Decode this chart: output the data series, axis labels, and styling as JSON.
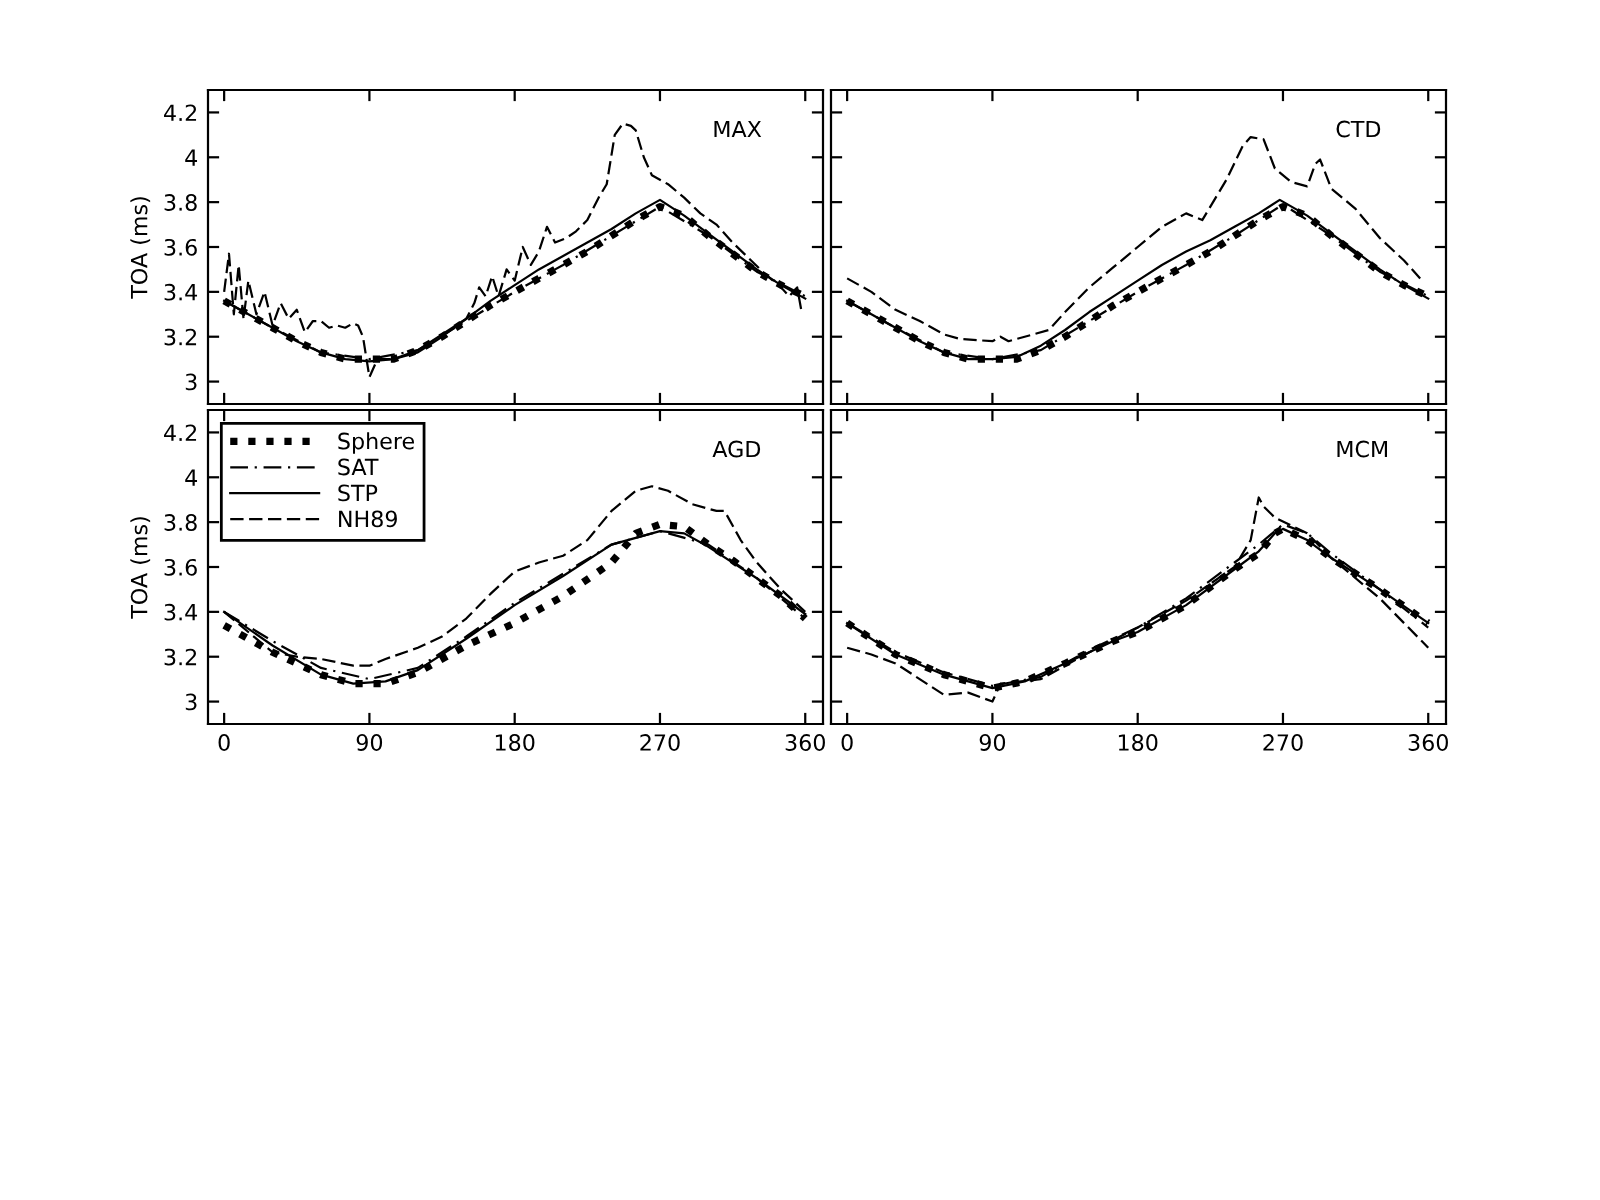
{
  "chart_data": [
    {
      "type": "line",
      "title": "MAX",
      "ylabel": "TOA (ms)",
      "xlim": [
        -10,
        371
      ],
      "ylim": [
        2.9,
        4.3
      ],
      "xticks": [
        0,
        90,
        180,
        270,
        360
      ],
      "yticks": [
        3,
        3.2,
        3.4,
        3.6,
        3.8,
        4,
        4.2
      ],
      "tick_labels": "y",
      "grid": false,
      "legend": false,
      "series": [
        {
          "color": "#000000",
          "line_style": "dotted",
          "x": [
            0,
            15,
            30,
            45,
            60,
            75,
            90,
            105,
            120,
            135,
            150,
            165,
            180,
            195,
            210,
            225,
            240,
            255,
            270,
            285,
            300,
            315,
            330,
            345,
            360
          ],
          "values": [
            3.36,
            3.3,
            3.24,
            3.18,
            3.13,
            3.1,
            3.1,
            3.1,
            3.14,
            3.2,
            3.27,
            3.34,
            3.4,
            3.46,
            3.52,
            3.58,
            3.65,
            3.72,
            3.78,
            3.74,
            3.65,
            3.57,
            3.49,
            3.43,
            3.38
          ]
        },
        {
          "color": "#000000",
          "line_style": "dashdot",
          "x": [
            0,
            30,
            60,
            90,
            120,
            150,
            180,
            210,
            240,
            270,
            300,
            330,
            360
          ],
          "values": [
            3.36,
            3.24,
            3.13,
            3.1,
            3.14,
            3.27,
            3.4,
            3.52,
            3.65,
            3.78,
            3.65,
            3.49,
            3.38
          ]
        },
        {
          "color": "#000000",
          "line_style": "solid",
          "x": [
            0,
            15,
            30,
            45,
            60,
            75,
            90,
            105,
            120,
            135,
            150,
            165,
            180,
            195,
            210,
            225,
            240,
            255,
            270,
            285,
            300,
            315,
            330,
            345,
            360
          ],
          "values": [
            3.36,
            3.3,
            3.24,
            3.18,
            3.13,
            3.1,
            3.09,
            3.1,
            3.14,
            3.21,
            3.28,
            3.36,
            3.43,
            3.5,
            3.56,
            3.62,
            3.68,
            3.75,
            3.81,
            3.74,
            3.66,
            3.58,
            3.5,
            3.43,
            3.37
          ]
        },
        {
          "color": "#000000",
          "line_style": "dashed",
          "x": [
            0,
            3,
            6,
            9,
            12,
            15,
            20,
            25,
            30,
            35,
            40,
            45,
            50,
            55,
            60,
            65,
            70,
            75,
            80,
            83,
            86,
            90,
            95,
            105,
            120,
            135,
            150,
            155,
            158,
            162,
            166,
            170,
            175,
            180,
            185,
            190,
            195,
            200,
            205,
            212,
            218,
            225,
            232,
            237,
            242,
            247,
            252,
            255,
            260,
            265,
            275,
            285,
            295,
            305,
            315,
            325,
            335,
            345,
            350,
            355,
            358
          ],
          "values": [
            3.4,
            3.57,
            3.3,
            3.52,
            3.28,
            3.45,
            3.3,
            3.4,
            3.25,
            3.35,
            3.28,
            3.32,
            3.22,
            3.27,
            3.27,
            3.24,
            3.25,
            3.24,
            3.26,
            3.25,
            3.2,
            3.02,
            3.1,
            3.1,
            3.13,
            3.2,
            3.28,
            3.35,
            3.42,
            3.38,
            3.47,
            3.38,
            3.5,
            3.45,
            3.6,
            3.52,
            3.58,
            3.69,
            3.62,
            3.64,
            3.67,
            3.72,
            3.82,
            3.88,
            4.1,
            4.15,
            4.14,
            4.12,
            4.0,
            3.92,
            3.88,
            3.82,
            3.75,
            3.7,
            3.62,
            3.55,
            3.48,
            3.42,
            3.38,
            3.42,
            3.3
          ]
        }
      ]
    },
    {
      "type": "line",
      "title": "CTD",
      "xlim": [
        -10,
        371
      ],
      "ylim": [
        2.9,
        4.3
      ],
      "xticks": [
        0,
        90,
        180,
        270,
        360
      ],
      "yticks": [
        3,
        3.2,
        3.4,
        3.6,
        3.8,
        4,
        4.2
      ],
      "tick_labels": false,
      "grid": false,
      "legend": false,
      "series": [
        {
          "color": "#000000",
          "line_style": "dotted",
          "x": [
            0,
            15,
            30,
            45,
            60,
            75,
            90,
            105,
            120,
            135,
            150,
            165,
            180,
            195,
            210,
            225,
            240,
            255,
            270,
            285,
            300,
            315,
            330,
            345,
            360
          ],
          "values": [
            3.36,
            3.3,
            3.24,
            3.18,
            3.13,
            3.1,
            3.1,
            3.1,
            3.14,
            3.2,
            3.27,
            3.34,
            3.4,
            3.46,
            3.52,
            3.58,
            3.65,
            3.72,
            3.78,
            3.74,
            3.65,
            3.57,
            3.49,
            3.43,
            3.38
          ]
        },
        {
          "color": "#000000",
          "line_style": "dashdot",
          "x": [
            0,
            30,
            60,
            90,
            120,
            150,
            180,
            210,
            240,
            270,
            300,
            330,
            360
          ],
          "values": [
            3.36,
            3.24,
            3.13,
            3.1,
            3.14,
            3.27,
            3.4,
            3.52,
            3.65,
            3.79,
            3.65,
            3.49,
            3.38
          ]
        },
        {
          "color": "#000000",
          "line_style": "solid",
          "x": [
            0,
            15,
            30,
            45,
            60,
            75,
            90,
            105,
            120,
            135,
            150,
            165,
            180,
            195,
            210,
            225,
            240,
            255,
            268,
            285,
            300,
            315,
            330,
            345,
            360
          ],
          "values": [
            3.36,
            3.3,
            3.24,
            3.18,
            3.13,
            3.1,
            3.1,
            3.11,
            3.16,
            3.23,
            3.31,
            3.38,
            3.45,
            3.52,
            3.58,
            3.63,
            3.69,
            3.75,
            3.81,
            3.74,
            3.66,
            3.58,
            3.5,
            3.43,
            3.37
          ]
        },
        {
          "color": "#000000",
          "line_style": "dashed",
          "x": [
            0,
            15,
            30,
            45,
            60,
            70,
            90,
            95,
            100,
            110,
            125,
            135,
            150,
            165,
            180,
            195,
            210,
            220,
            235,
            245,
            250,
            258,
            265,
            275,
            285,
            290,
            293,
            300,
            315,
            330,
            345,
            355
          ],
          "values": [
            3.46,
            3.4,
            3.32,
            3.27,
            3.21,
            3.19,
            3.18,
            3.2,
            3.18,
            3.2,
            3.23,
            3.31,
            3.42,
            3.51,
            3.6,
            3.69,
            3.75,
            3.72,
            3.9,
            4.05,
            4.09,
            4.08,
            3.95,
            3.89,
            3.87,
            3.97,
            3.99,
            3.86,
            3.77,
            3.64,
            3.54,
            3.46
          ]
        }
      ]
    },
    {
      "type": "line",
      "title": "AGD",
      "ylabel": "TOA (ms)",
      "xlim": [
        -10,
        371
      ],
      "ylim": [
        2.9,
        4.3
      ],
      "xticks": [
        0,
        90,
        180,
        270,
        360
      ],
      "yticks": [
        3,
        3.2,
        3.4,
        3.6,
        3.8,
        4,
        4.2
      ],
      "grid": false,
      "legend": "top left",
      "series": [
        {
          "name": "Sphere",
          "color": "#000000",
          "line_style": "dotted",
          "x": [
            0,
            30,
            60,
            80,
            100,
            120,
            150,
            180,
            210,
            240,
            255,
            270,
            285,
            300,
            315,
            330,
            345,
            360
          ],
          "values": [
            3.34,
            3.22,
            3.12,
            3.08,
            3.08,
            3.13,
            3.25,
            3.35,
            3.47,
            3.62,
            3.75,
            3.79,
            3.78,
            3.7,
            3.63,
            3.55,
            3.47,
            3.37
          ]
        },
        {
          "name": "SAT",
          "color": "#000000",
          "line_style": "dashdot",
          "x": [
            0,
            30,
            60,
            90,
            120,
            150,
            180,
            210,
            240,
            270,
            300,
            330,
            360
          ],
          "values": [
            3.4,
            3.27,
            3.15,
            3.1,
            3.15,
            3.29,
            3.44,
            3.57,
            3.7,
            3.76,
            3.7,
            3.55,
            3.37
          ]
        },
        {
          "name": "STP",
          "color": "#000000",
          "line_style": "solid",
          "x": [
            0,
            30,
            60,
            80,
            100,
            120,
            150,
            180,
            210,
            240,
            270,
            285,
            300,
            330,
            360
          ],
          "values": [
            3.4,
            3.25,
            3.12,
            3.08,
            3.09,
            3.14,
            3.28,
            3.43,
            3.56,
            3.7,
            3.76,
            3.75,
            3.69,
            3.55,
            3.39
          ]
        },
        {
          "name": "NH89",
          "color": "#000000",
          "line_style": "dashed",
          "x": [
            0,
            30,
            45,
            60,
            80,
            90,
            100,
            120,
            135,
            150,
            165,
            180,
            195,
            210,
            225,
            240,
            255,
            265,
            275,
            290,
            305,
            310,
            320,
            330,
            345,
            360
          ],
          "values": [
            3.4,
            3.22,
            3.2,
            3.19,
            3.16,
            3.16,
            3.19,
            3.24,
            3.29,
            3.37,
            3.48,
            3.58,
            3.62,
            3.65,
            3.72,
            3.85,
            3.94,
            3.96,
            3.94,
            3.88,
            3.85,
            3.85,
            3.72,
            3.62,
            3.5,
            3.4
          ]
        }
      ]
    },
    {
      "type": "line",
      "title": "MCM",
      "xlim": [
        -10,
        371
      ],
      "ylim": [
        2.9,
        4.3
      ],
      "xticks": [
        0,
        90,
        180,
        270,
        360
      ],
      "yticks": [
        3,
        3.2,
        3.4,
        3.6,
        3.8,
        4,
        4.2
      ],
      "tick_labels": "x",
      "grid": false,
      "legend": false,
      "series": [
        {
          "color": "#000000",
          "line_style": "dotted",
          "x": [
            0,
            30,
            60,
            90,
            110,
            135,
            165,
            180,
            210,
            240,
            255,
            265,
            270,
            285,
            300,
            330,
            360
          ],
          "values": [
            3.35,
            3.21,
            3.12,
            3.06,
            3.09,
            3.17,
            3.27,
            3.31,
            3.43,
            3.59,
            3.66,
            3.75,
            3.77,
            3.72,
            3.64,
            3.5,
            3.35
          ]
        },
        {
          "color": "#000000",
          "line_style": "dashdot",
          "x": [
            0,
            30,
            60,
            90,
            120,
            150,
            180,
            210,
            240,
            255,
            270,
            285,
            300,
            330,
            360
          ],
          "values": [
            3.35,
            3.22,
            3.13,
            3.07,
            3.11,
            3.23,
            3.33,
            3.46,
            3.62,
            3.7,
            3.79,
            3.75,
            3.66,
            3.5,
            3.33
          ]
        },
        {
          "color": "#000000",
          "line_style": "solid",
          "x": [
            0,
            30,
            60,
            90,
            110,
            135,
            165,
            180,
            210,
            240,
            255,
            265,
            270,
            285,
            300,
            330,
            360
          ],
          "values": [
            3.35,
            3.21,
            3.12,
            3.06,
            3.09,
            3.17,
            3.27,
            3.31,
            3.43,
            3.59,
            3.67,
            3.75,
            3.77,
            3.72,
            3.64,
            3.5,
            3.35
          ]
        },
        {
          "color": "#000000",
          "line_style": "dashed",
          "x": [
            0,
            15,
            30,
            60,
            75,
            90,
            95,
            120,
            150,
            180,
            210,
            240,
            250,
            255,
            258,
            265,
            285,
            300,
            330,
            360
          ],
          "values": [
            3.24,
            3.21,
            3.17,
            3.03,
            3.04,
            3.0,
            3.08,
            3.1,
            3.22,
            3.33,
            3.45,
            3.6,
            3.72,
            3.91,
            3.87,
            3.82,
            3.75,
            3.64,
            3.46,
            3.24
          ]
        }
      ]
    }
  ]
}
